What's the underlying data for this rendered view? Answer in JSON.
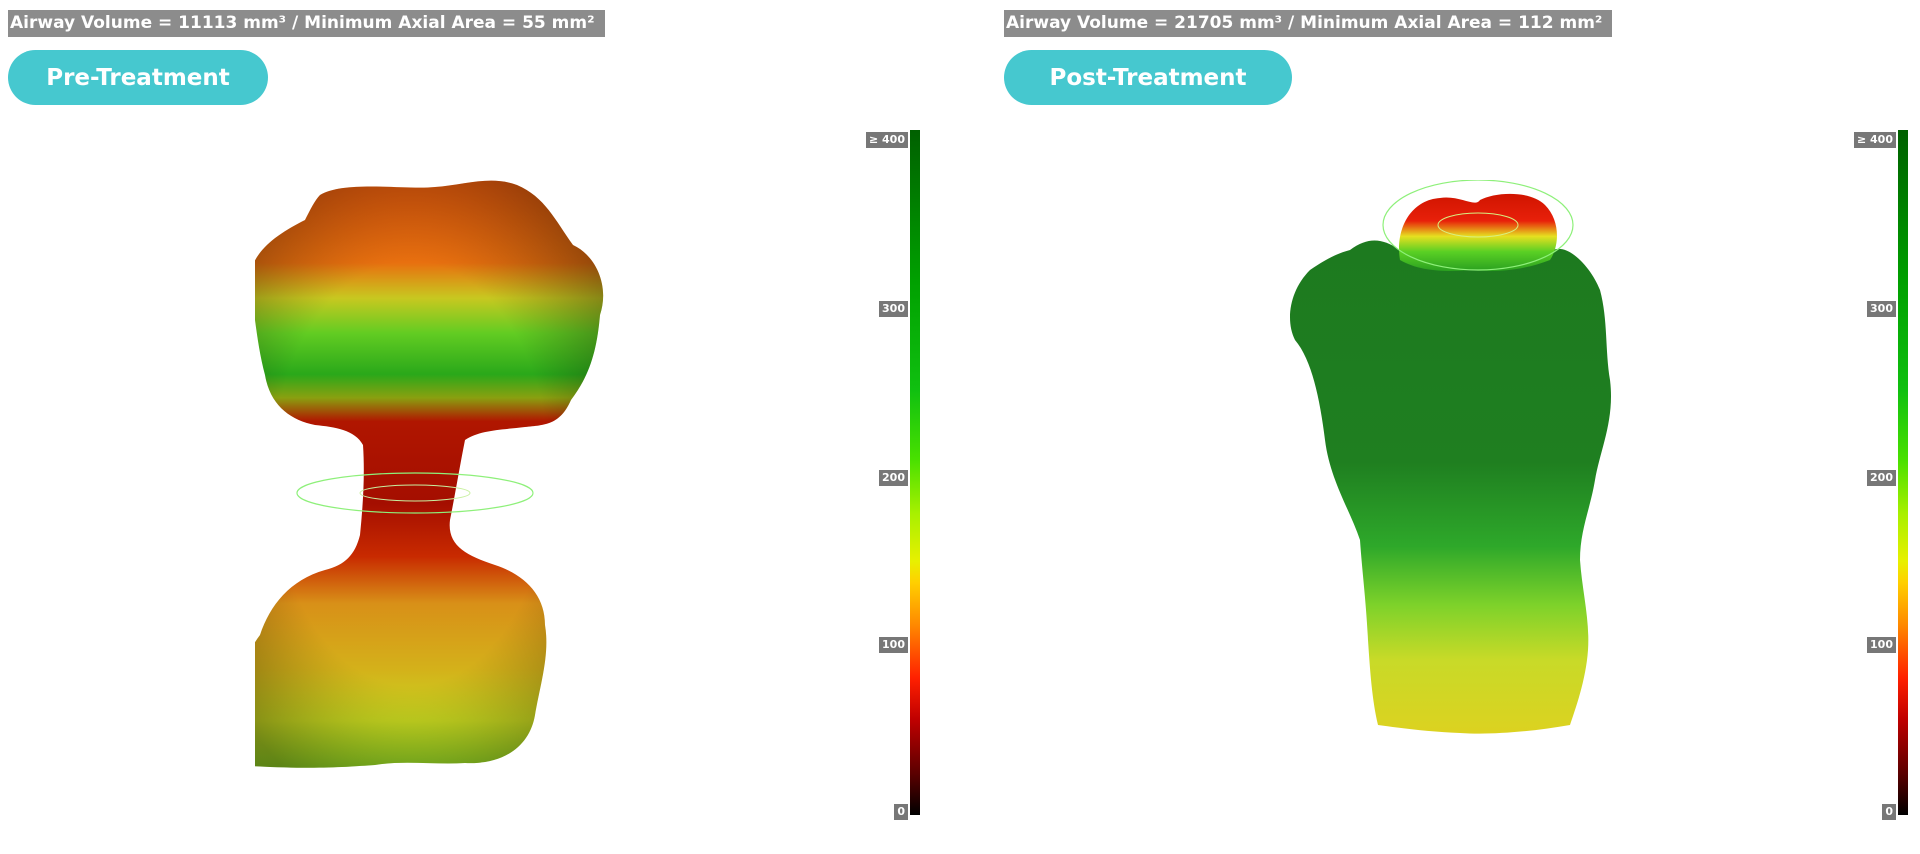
{
  "panels": [
    {
      "metrics": "Airway Volume = 11113 mm³ / Minimum Axial Area = 55 mm²",
      "label": "Pre-Treatment"
    },
    {
      "metrics": "Airway Volume = 21705 mm³ / Minimum Axial Area = 112 mm²",
      "label": "Post-Treatment"
    }
  ],
  "scale": {
    "ticks": [
      "≥ 400",
      "300",
      "200",
      "100",
      "0"
    ],
    "colors": {
      "low": "#000000",
      "red": "#c00000",
      "yellow": "#ffd000",
      "green": "#00a000",
      "high": "#006000"
    }
  }
}
